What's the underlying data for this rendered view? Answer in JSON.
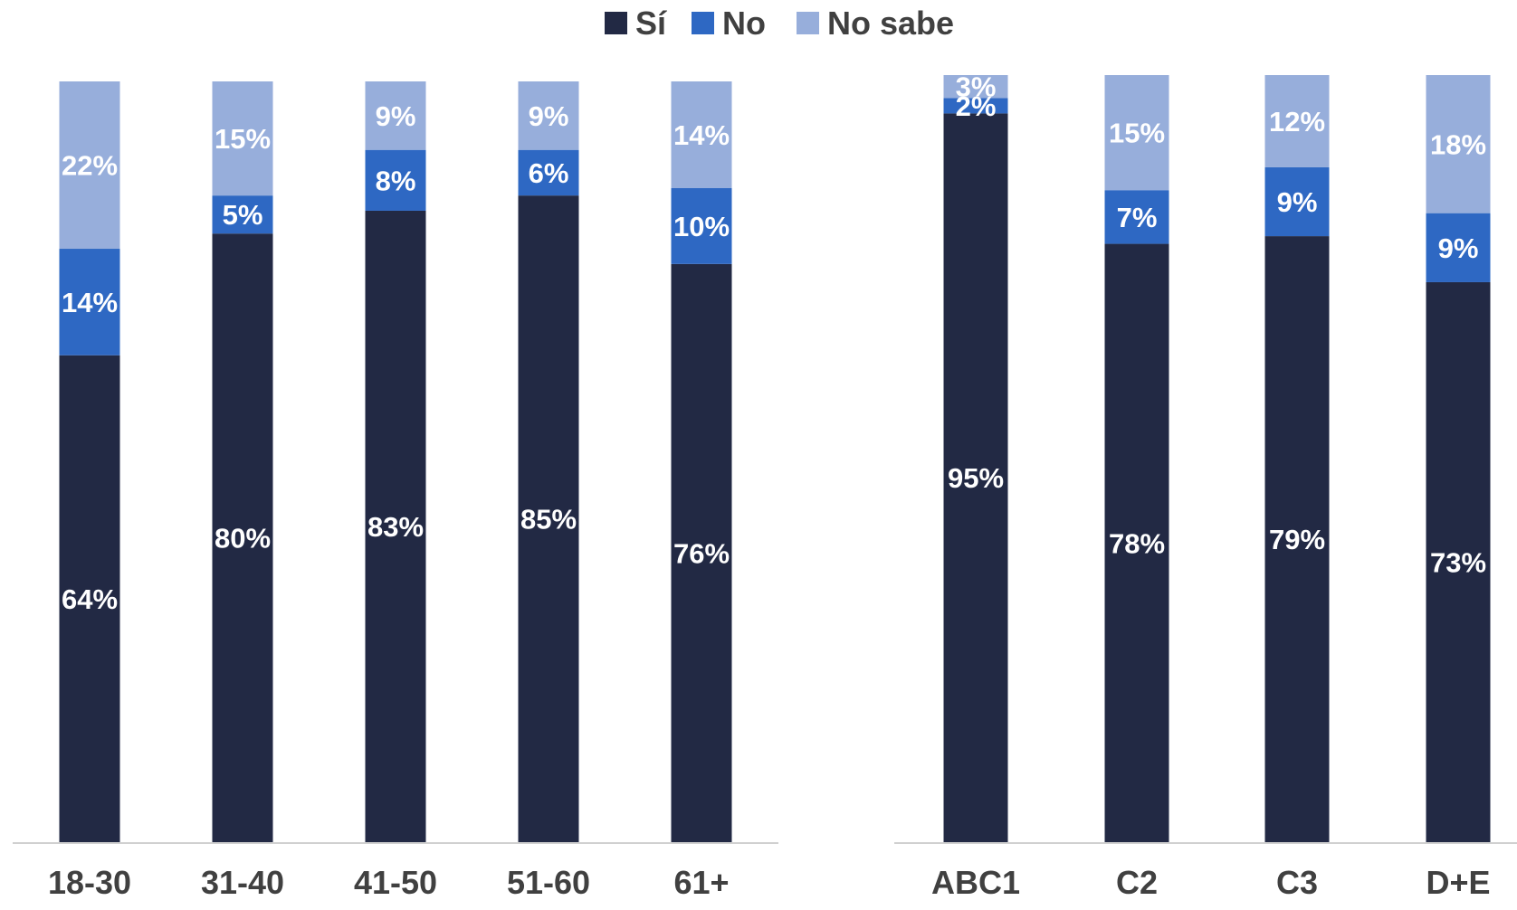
{
  "chart_data": [
    {
      "type": "bar",
      "stacked": true,
      "categories": [
        "18-30",
        "31-40",
        "41-50",
        "51-60",
        "61+"
      ],
      "series": [
        {
          "name": "Sí",
          "values": [
            64,
            80,
            83,
            85,
            76
          ],
          "labels": [
            "64%",
            "80%",
            "83%",
            "85%",
            "76%"
          ]
        },
        {
          "name": "No",
          "values": [
            14,
            5,
            8,
            6,
            10
          ],
          "labels": [
            "14%",
            "5%",
            "8%",
            "6%",
            "10%"
          ]
        },
        {
          "name": "No sabe",
          "values": [
            22,
            15,
            9,
            9,
            14
          ],
          "labels": [
            "22%",
            "15%",
            "9%",
            "9%",
            "14%"
          ]
        }
      ],
      "ylim": [
        0,
        100
      ],
      "grid": false
    },
    {
      "type": "bar",
      "stacked": true,
      "categories": [
        "ABC1",
        "C2",
        "C3",
        "D+E"
      ],
      "series": [
        {
          "name": "Sí",
          "values": [
            95,
            78,
            79,
            73
          ],
          "labels": [
            "95%",
            "78%",
            "79%",
            "73%"
          ]
        },
        {
          "name": "No",
          "values": [
            2,
            7,
            9,
            9
          ],
          "labels": [
            "2%",
            "7%",
            "9%",
            "9%"
          ]
        },
        {
          "name": "No sabe",
          "values": [
            3,
            15,
            12,
            18
          ],
          "labels": [
            "3%",
            "15%",
            "12%",
            "18%"
          ]
        }
      ],
      "ylim": [
        0,
        100
      ],
      "grid": false
    }
  ],
  "legend": {
    "placement": "top-center",
    "items": [
      {
        "name": "Sí",
        "color": "#222944"
      },
      {
        "name": "No",
        "color": "#2e68c3"
      },
      {
        "name": "No sabe",
        "color": "#97aedb"
      }
    ]
  },
  "colors": {
    "si": "#222944",
    "no": "#2e68c3",
    "no_sabe": "#97aedb",
    "axis": "#d0d0d0",
    "label_text": "#404040"
  }
}
